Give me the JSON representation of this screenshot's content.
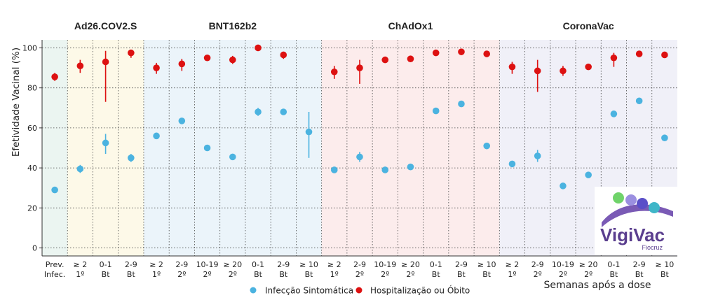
{
  "chart_data": {
    "type": "scatter",
    "ylabel": "Efetividade Vacinal (%)",
    "xlabel": "Semanas após a dose",
    "ylim": [
      -4,
      104
    ],
    "yticks": [
      0,
      20,
      40,
      60,
      80,
      100
    ],
    "grid": true,
    "legend_position": "bottom-center",
    "colors": {
      "infection": "#4bb3e0",
      "hospital": "#dd1111"
    },
    "groups": [
      {
        "name": "",
        "bg": "#ebf5f1",
        "categories": [
          {
            "l1": "Prev.",
            "l2": "Infec."
          }
        ]
      },
      {
        "name": "Ad26.COV2.S",
        "bg": "#fdf9e8",
        "categories": [
          {
            "l1": "≥ 2",
            "l2": "1º"
          },
          {
            "l1": "0-1",
            "l2": "Bt"
          },
          {
            "l1": "2-9",
            "l2": "Bt"
          }
        ]
      },
      {
        "name": "BNT162b2",
        "bg": "#ebf4fa",
        "categories": [
          {
            "l1": "≥ 2",
            "l2": "1º"
          },
          {
            "l1": "2-9",
            "l2": "2º"
          },
          {
            "l1": "10-19",
            "l2": "2º"
          },
          {
            "l1": "≥ 20",
            "l2": "2º"
          },
          {
            "l1": "0-1",
            "l2": "Bt"
          },
          {
            "l1": "2-9",
            "l2": "Bt"
          },
          {
            "l1": "≥ 10",
            "l2": "Bt"
          }
        ]
      },
      {
        "name": "ChAdOx1",
        "bg": "#fcecec",
        "categories": [
          {
            "l1": "≥ 2",
            "l2": "1º"
          },
          {
            "l1": "2-9",
            "l2": "2º"
          },
          {
            "l1": "10-19",
            "l2": "2º"
          },
          {
            "l1": "≥ 20",
            "l2": "2º"
          },
          {
            "l1": "0-1",
            "l2": "Bt"
          },
          {
            "l1": "2-9",
            "l2": "Bt"
          },
          {
            "l1": "≥ 10",
            "l2": "Bt"
          }
        ]
      },
      {
        "name": "CoronaVac",
        "bg": "#f0f0f8",
        "categories": [
          {
            "l1": "≥ 2",
            "l2": "1º"
          },
          {
            "l1": "2-9",
            "l2": "2º"
          },
          {
            "l1": "10-19",
            "l2": "2º"
          },
          {
            "l1": "≥ 20",
            "l2": "2º"
          },
          {
            "l1": "0-1",
            "l2": "Bt"
          },
          {
            "l1": "2-9",
            "l2": "Bt"
          },
          {
            "l1": "≥ 10",
            "l2": "Bt"
          }
        ]
      }
    ],
    "series": [
      {
        "name": "Infecção Sintomática",
        "values": [
          {
            "c": 0,
            "y": 29,
            "lo": 27.5,
            "hi": 30.5
          },
          {
            "c": 1,
            "y": 39.5,
            "lo": 37.5,
            "hi": 41.5
          },
          {
            "c": 2,
            "y": 52.5,
            "lo": 47,
            "hi": 57
          },
          {
            "c": 3,
            "y": 45,
            "lo": 43,
            "hi": 47
          },
          {
            "c": 4,
            "y": 56,
            "lo": 55,
            "hi": 57
          },
          {
            "c": 5,
            "y": 63.5,
            "lo": 62.5,
            "hi": 64.5
          },
          {
            "c": 6,
            "y": 50,
            "lo": 49,
            "hi": 51
          },
          {
            "c": 7,
            "y": 45.5,
            "lo": 44,
            "hi": 47
          },
          {
            "c": 8,
            "y": 68,
            "lo": 66,
            "hi": 70
          },
          {
            "c": 9,
            "y": 68,
            "lo": 67,
            "hi": 69
          },
          {
            "c": 10,
            "y": 58,
            "lo": 45,
            "hi": 68
          },
          {
            "c": 11,
            "y": 39,
            "lo": 38,
            "hi": 40
          },
          {
            "c": 12,
            "y": 45.5,
            "lo": 43,
            "hi": 48
          },
          {
            "c": 13,
            "y": 39,
            "lo": 38.5,
            "hi": 39.5
          },
          {
            "c": 14,
            "y": 40.5,
            "lo": 40,
            "hi": 41
          },
          {
            "c": 15,
            "y": 68.5,
            "lo": 68,
            "hi": 69
          },
          {
            "c": 16,
            "y": 72,
            "lo": 71.5,
            "hi": 72.5
          },
          {
            "c": 17,
            "y": 51,
            "lo": 50,
            "hi": 52
          },
          {
            "c": 18,
            "y": 42,
            "lo": 40.5,
            "hi": 43.5
          },
          {
            "c": 19,
            "y": 46,
            "lo": 43,
            "hi": 49
          },
          {
            "c": 20,
            "y": 31,
            "lo": 30.5,
            "hi": 31.5
          },
          {
            "c": 21,
            "y": 36.5,
            "lo": 36,
            "hi": 37
          },
          {
            "c": 22,
            "y": 67,
            "lo": 65.5,
            "hi": 68.5
          },
          {
            "c": 23,
            "y": 73.5,
            "lo": 73,
            "hi": 74
          },
          {
            "c": 24,
            "y": 55,
            "lo": 54,
            "hi": 56
          }
        ]
      },
      {
        "name": "Hospitalização ou Óbito",
        "values": [
          {
            "c": 0,
            "y": 85.5,
            "lo": 83.5,
            "hi": 87.5
          },
          {
            "c": 1,
            "y": 91,
            "lo": 87.5,
            "hi": 94
          },
          {
            "c": 2,
            "y": 93,
            "lo": 73,
            "hi": 98.5
          },
          {
            "c": 3,
            "y": 97.5,
            "lo": 95,
            "hi": 99
          },
          {
            "c": 4,
            "y": 90,
            "lo": 87,
            "hi": 92.5
          },
          {
            "c": 5,
            "y": 92,
            "lo": 88.5,
            "hi": 94.5
          },
          {
            "c": 6,
            "y": 95,
            "lo": 94,
            "hi": 96
          },
          {
            "c": 7,
            "y": 94,
            "lo": 92,
            "hi": 96
          },
          {
            "c": 8,
            "y": 100,
            "lo": 99.5,
            "hi": 100.5
          },
          {
            "c": 9,
            "y": 96.5,
            "lo": 94.5,
            "hi": 98
          },
          {
            "c": 11,
            "y": 88,
            "lo": 84.5,
            "hi": 91
          },
          {
            "c": 12,
            "y": 90,
            "lo": 82,
            "hi": 94
          },
          {
            "c": 13,
            "y": 94,
            "lo": 93,
            "hi": 95
          },
          {
            "c": 14,
            "y": 94.5,
            "lo": 93.5,
            "hi": 95.5
          },
          {
            "c": 15,
            "y": 97.5,
            "lo": 97,
            "hi": 98
          },
          {
            "c": 16,
            "y": 98,
            "lo": 97.5,
            "hi": 98.5
          },
          {
            "c": 17,
            "y": 97,
            "lo": 96.5,
            "hi": 97.5
          },
          {
            "c": 18,
            "y": 90.5,
            "lo": 87,
            "hi": 93
          },
          {
            "c": 19,
            "y": 88.5,
            "lo": 78,
            "hi": 94
          },
          {
            "c": 20,
            "y": 88.5,
            "lo": 86,
            "hi": 91
          },
          {
            "c": 21,
            "y": 90.5,
            "lo": 90,
            "hi": 91
          },
          {
            "c": 22,
            "y": 95,
            "lo": 90.5,
            "hi": 97.5
          },
          {
            "c": 23,
            "y": 97,
            "lo": 96.5,
            "hi": 97.5
          },
          {
            "c": 24,
            "y": 96.5,
            "lo": 96,
            "hi": 97
          }
        ]
      }
    ]
  },
  "logo": {
    "name": "VigiVac",
    "sub": "Fiocruz",
    "dot_colors": [
      "#6fd36a",
      "#9b8fe0",
      "#5a4fc8",
      "#3fb6c8"
    ]
  }
}
